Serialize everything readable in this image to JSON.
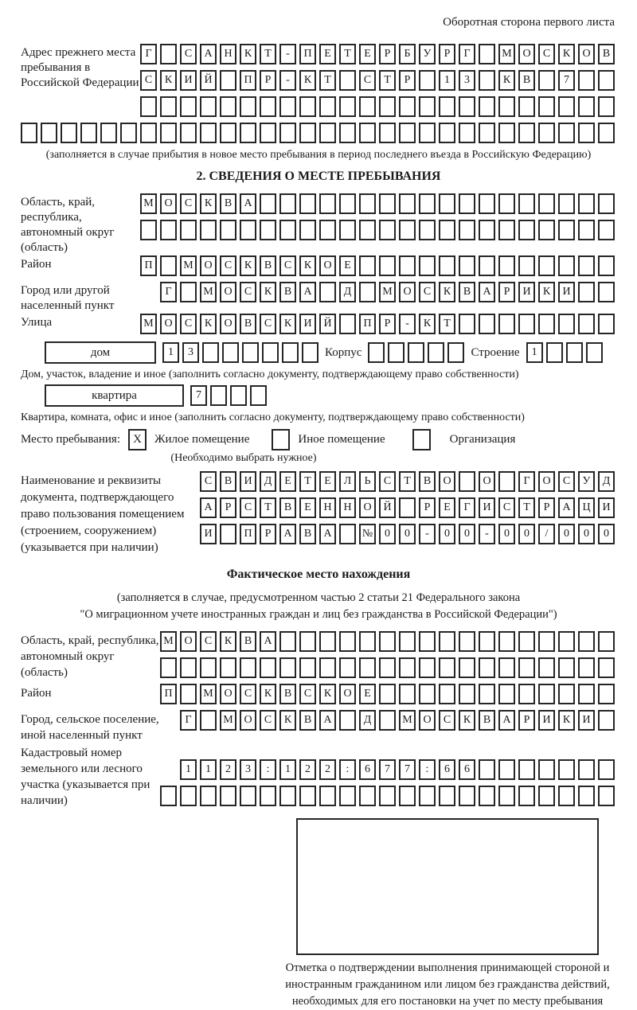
{
  "page": {
    "header_note": "Оборотная сторона первого листа"
  },
  "prev_address": {
    "label": "Адрес прежнего места пребывания в Российской Федерации",
    "row1": {
      "text": "Г САНКТ-ПЕТЕРБУРГ МОСКОВ",
      "len": 24
    },
    "row2": {
      "text": "СКИЙ ПР-КТ СТР 13 КВ 7",
      "len": 24
    },
    "row3": {
      "text": "",
      "len": 24
    },
    "row4": {
      "text": "",
      "len": 30
    },
    "note": "(заполняется в случае прибытия в новое место пребывания в период последнего въезда в Российскую Федерацию)"
  },
  "section2": {
    "title": "2. СВЕДЕНИЯ О МЕСТЕ ПРЕБЫВАНИЯ",
    "region": {
      "label": "Область, край, республика, автономный округ (область)",
      "row1": {
        "text": "МОСКВА",
        "len": 24
      },
      "row2": {
        "text": "",
        "len": 24
      }
    },
    "district": {
      "label": "Район",
      "row": {
        "text": "П МОСКВСКОЕ",
        "len": 24
      }
    },
    "city": {
      "label": "Город или другой населенный пункт",
      "row": {
        "text": "Г МОСКВА Д МОСКВАРИКИ",
        "len": 23
      }
    },
    "street": {
      "label": "Улица",
      "row": {
        "text": "МОСКОВСКИЙ ПР-КТ",
        "len": 24
      }
    },
    "house": {
      "box_label": "дом",
      "house_cells": {
        "text": "13",
        "len": 8
      },
      "korpus_label": "Корпус",
      "korpus_cells": {
        "text": "",
        "len": 5
      },
      "stroenie_label": "Строение",
      "stroenie_cells": {
        "text": "1",
        "len": 4
      },
      "note": "Дом, участок, владение и иное (заполнить согласно документу, подтверждающему право собственности)"
    },
    "apartment": {
      "box_label": "квартира",
      "cells": {
        "text": "7",
        "len": 4
      },
      "note": "Квартира, комната, офис и иное (заполнить согласно документу, подтверждающему право собственности)"
    },
    "stay": {
      "label": "Место пребывания:",
      "options": [
        {
          "label": "Жилое помещение",
          "mark": "X"
        },
        {
          "label": "Иное помещение",
          "mark": ""
        },
        {
          "label": "Организация",
          "mark": ""
        }
      ],
      "note": "(Необходимо выбрать нужное)"
    },
    "document": {
      "label": "Наименование и реквизиты документа, подтверждающего право пользования помещением (строением, сооружением) (указывается при наличии)",
      "row1": {
        "text": "СВИДЕТЕЛЬСТВО О ГОСУД",
        "len": 21
      },
      "row2": {
        "text": "АРСТВЕННОЙ РЕГИСТРАЦИ",
        "len": 21
      },
      "row3": {
        "text": "И ПРАВА №00-00-00/000",
        "len": 21
      }
    }
  },
  "actual_location": {
    "title": "Фактическое место нахождения",
    "note1": "(заполняется в случае, предусмотренном частью 2 статьи 21 Федерального закона",
    "note2": "\"О миграционном учете иностранных граждан и лиц без гражданства в Российской Федерации\")",
    "region": {
      "label": "Область, край, республика, автономный округ (область)",
      "row1": {
        "text": "МОСКВА",
        "len": 23
      },
      "row2": {
        "text": "",
        "len": 23
      }
    },
    "district": {
      "label": "Район",
      "row": {
        "text": "П МОСКВСКОЕ",
        "len": 23
      }
    },
    "city": {
      "label": "Город, сельское поселение, иной населенный пункт",
      "row": {
        "text": "Г МОСКВА Д МОСКВАРИКИ",
        "len": 22
      }
    },
    "cadastral": {
      "label": "Кадастровый номер земельного или лесного участка (указывается при наличии)",
      "row1": {
        "text": "1123:122:677:66",
        "len": 22
      },
      "row2": {
        "text": "",
        "len": 23
      }
    },
    "stamp_note": "Отметка о подтверждении выполнения принимающей стороной и иностранным гражданином или лицом без гражданства действий, необходимых для его постановки на учет по месту пребывания"
  }
}
